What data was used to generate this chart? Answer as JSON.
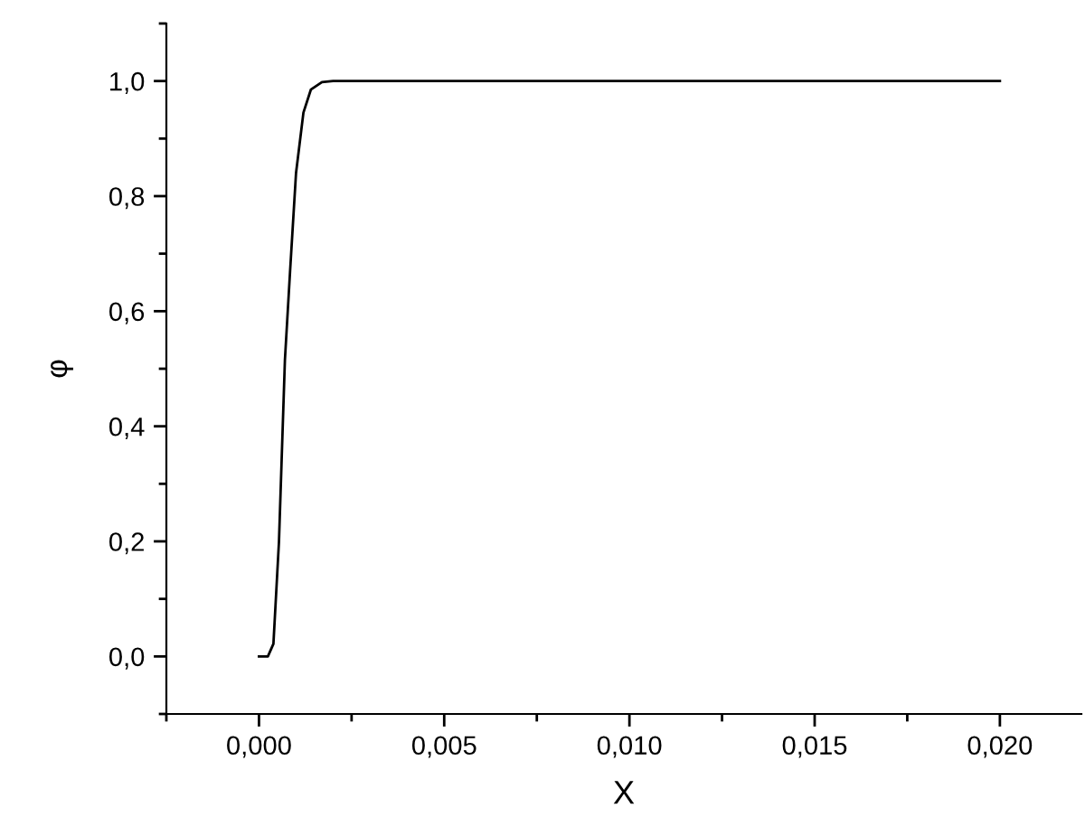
{
  "chart_data": {
    "type": "line",
    "xlabel": "X",
    "ylabel": "φ",
    "x": [
      0.0,
      0.00024,
      0.00039,
      0.00054,
      0.0007,
      0.00084,
      0.001,
      0.0012,
      0.0014,
      0.0017,
      0.002,
      0.02
    ],
    "series": [
      {
        "color": "#000000",
        "values": [
          0.0,
          0.0,
          0.022,
          0.2,
          0.515,
          0.67,
          0.84,
          0.945,
          0.985,
          0.998,
          1.0,
          1.0
        ]
      }
    ],
    "xlim": [
      -0.0025,
      0.0222
    ],
    "ylim": [
      -0.1,
      1.1
    ],
    "xticks": [
      {
        "value": 0.0,
        "label": "0,000"
      },
      {
        "value": 0.005,
        "label": "0,005"
      },
      {
        "value": 0.01,
        "label": "0,010"
      },
      {
        "value": 0.015,
        "label": "0,015"
      },
      {
        "value": 0.02,
        "label": "0,020"
      },
      {
        "value": -0.0025,
        "label": null
      },
      {
        "value": 0.0025,
        "label": null
      },
      {
        "value": 0.0075,
        "label": null
      },
      {
        "value": 0.0125,
        "label": null
      },
      {
        "value": 0.0175,
        "label": null
      }
    ],
    "yticks": [
      {
        "value": 0.0,
        "label": "0,0"
      },
      {
        "value": 0.2,
        "label": "0,2"
      },
      {
        "value": 0.4,
        "label": "0,4"
      },
      {
        "value": 0.6,
        "label": "0,6"
      },
      {
        "value": 0.8,
        "label": "0,8"
      },
      {
        "value": 1.0,
        "label": "1,0"
      },
      {
        "value": -0.1,
        "label": null
      },
      {
        "value": 0.1,
        "label": null
      },
      {
        "value": 0.3,
        "label": null
      },
      {
        "value": 0.5,
        "label": null
      },
      {
        "value": 0.7,
        "label": null
      },
      {
        "value": 0.9,
        "label": null
      },
      {
        "value": 1.1,
        "label": null
      }
    ],
    "grid": false,
    "legend": false,
    "marker": "none",
    "line_style": "solid"
  }
}
